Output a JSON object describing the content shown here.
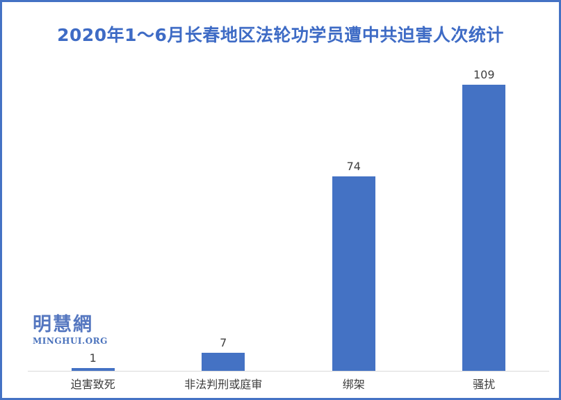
{
  "frame": {
    "border_color": "#4472C4",
    "background": "#FFFFFF"
  },
  "chart_data": {
    "type": "bar",
    "title": "2020年1～6月长春地区法轮功学员遭中共迫害人次统计",
    "categories": [
      "迫害致死",
      "非法判刑或庭审",
      "绑架",
      "骚扰"
    ],
    "values": [
      1,
      7,
      74,
      109
    ],
    "xlabel": "",
    "ylabel": "",
    "ylim": [
      0,
      120
    ],
    "grid": false,
    "legend": false,
    "bar_color": "#4472C4",
    "title_color": "#3E6BC5",
    "value_label_color": "#404040",
    "category_label_color": "#3B3B3B",
    "axis_line_color": "#D9D9D9"
  },
  "watermark": {
    "cjk": "明慧網",
    "latin": "MINGHUI.ORG",
    "color": "#5577C0"
  }
}
